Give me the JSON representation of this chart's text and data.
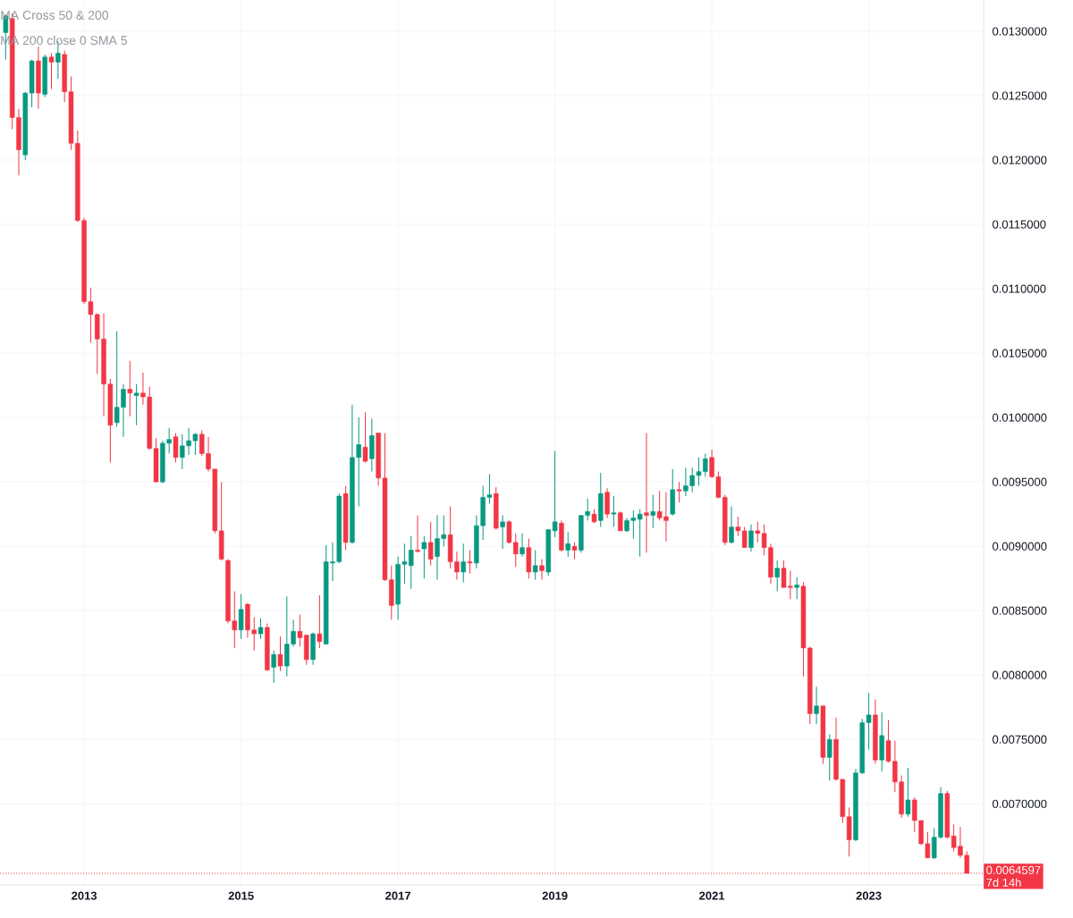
{
  "chart_data": {
    "type": "candlestick",
    "x": [
      "2012-01",
      "2012-02",
      "2012-03",
      "2012-04",
      "2012-05",
      "2012-06",
      "2012-07",
      "2012-08",
      "2012-09",
      "2012-10",
      "2012-11",
      "2012-12",
      "2013-01",
      "2013-02",
      "2013-03",
      "2013-04",
      "2013-05",
      "2013-06",
      "2013-07",
      "2013-08",
      "2013-09",
      "2013-10",
      "2013-11",
      "2013-12",
      "2014-01",
      "2014-02",
      "2014-03",
      "2014-04",
      "2014-05",
      "2014-06",
      "2014-07",
      "2014-08",
      "2014-09",
      "2014-10",
      "2014-11",
      "2014-12",
      "2015-01",
      "2015-02",
      "2015-03",
      "2015-04",
      "2015-05",
      "2015-06",
      "2015-07",
      "2015-08",
      "2015-09",
      "2015-10",
      "2015-11",
      "2015-12",
      "2016-01",
      "2016-02",
      "2016-03",
      "2016-04",
      "2016-05",
      "2016-06",
      "2016-07",
      "2016-08",
      "2016-09",
      "2016-10",
      "2016-11",
      "2016-12",
      "2017-01",
      "2017-02",
      "2017-03",
      "2017-04",
      "2017-05",
      "2017-06",
      "2017-07",
      "2017-08",
      "2017-09",
      "2017-10",
      "2017-11",
      "2017-12",
      "2018-01",
      "2018-02",
      "2018-03",
      "2018-04",
      "2018-05",
      "2018-06",
      "2018-07",
      "2018-08",
      "2018-09",
      "2018-10",
      "2018-11",
      "2018-12",
      "2019-01",
      "2019-02",
      "2019-03",
      "2019-04",
      "2019-05",
      "2019-06",
      "2019-07",
      "2019-08",
      "2019-09",
      "2019-10",
      "2019-11",
      "2019-12",
      "2020-01",
      "2020-02",
      "2020-03",
      "2020-04",
      "2020-05",
      "2020-06",
      "2020-07",
      "2020-08",
      "2020-09",
      "2020-10",
      "2020-11",
      "2020-12",
      "2021-01",
      "2021-02",
      "2021-03",
      "2021-04",
      "2021-05",
      "2021-06",
      "2021-07",
      "2021-08",
      "2021-09",
      "2021-10",
      "2021-11",
      "2021-12",
      "2022-01",
      "2022-02",
      "2022-03",
      "2022-04",
      "2022-05",
      "2022-06",
      "2022-07",
      "2022-08",
      "2022-09",
      "2022-10",
      "2022-11",
      "2022-12",
      "2023-01",
      "2023-02",
      "2023-03",
      "2023-04",
      "2023-05",
      "2023-06",
      "2023-07",
      "2023-08",
      "2023-09",
      "2023-10",
      "2023-11",
      "2023-12",
      "2024-01",
      "2024-02",
      "2024-03",
      "2024-04"
    ],
    "ohlc": [
      [
        0.01299,
        0.01313,
        0.01278,
        0.01312
      ],
      [
        0.0131,
        0.01314,
        0.01224,
        0.01233
      ],
      [
        0.01233,
        0.0124,
        0.01188,
        0.01208
      ],
      [
        0.01204,
        0.01253,
        0.012,
        0.01252
      ],
      [
        0.01252,
        0.01278,
        0.01241,
        0.01277
      ],
      [
        0.01277,
        0.01288,
        0.0124,
        0.01252
      ],
      [
        0.01251,
        0.01282,
        0.01249,
        0.0128
      ],
      [
        0.0128,
        0.01283,
        0.01255,
        0.01276
      ],
      [
        0.01276,
        0.01292,
        0.01263,
        0.01283
      ],
      [
        0.01282,
        0.01285,
        0.01245,
        0.01253
      ],
      [
        0.01253,
        0.01265,
        0.01208,
        0.01213
      ],
      [
        0.01213,
        0.01223,
        0.01152,
        0.01153
      ],
      [
        0.01153,
        0.01155,
        0.01088,
        0.0109
      ],
      [
        0.0109,
        0.01101,
        0.01058,
        0.0108
      ],
      [
        0.0108,
        0.01081,
        0.01034,
        0.01061
      ],
      [
        0.01061,
        0.01081,
        0.01001,
        0.01026
      ],
      [
        0.01026,
        0.0103,
        0.00965,
        0.00994
      ],
      [
        0.00996,
        0.01067,
        0.00993,
        0.01008
      ],
      [
        0.01008,
        0.01026,
        0.00985,
        0.01022
      ],
      [
        0.01022,
        0.01044,
        0.01001,
        0.01019
      ],
      [
        0.01017,
        0.01026,
        0.00994,
        0.01019
      ],
      [
        0.01019,
        0.01035,
        0.0101,
        0.01016
      ],
      [
        0.01016,
        0.01024,
        0.00975,
        0.00976
      ],
      [
        0.00976,
        0.00984,
        0.0095,
        0.0095
      ],
      [
        0.0095,
        0.00982,
        0.00949,
        0.0098
      ],
      [
        0.0098,
        0.00992,
        0.00972,
        0.00983
      ],
      [
        0.00985,
        0.00988,
        0.00965,
        0.00969
      ],
      [
        0.00969,
        0.00987,
        0.0096,
        0.00978
      ],
      [
        0.00978,
        0.00992,
        0.00971,
        0.00982
      ],
      [
        0.00982,
        0.00988,
        0.00971,
        0.00987
      ],
      [
        0.00987,
        0.0099,
        0.0097,
        0.00972
      ],
      [
        0.00972,
        0.00985,
        0.00958,
        0.0096
      ],
      [
        0.0096,
        0.0096,
        0.0091,
        0.00912
      ],
      [
        0.00912,
        0.0095,
        0.00889,
        0.0089
      ],
      [
        0.00889,
        0.0089,
        0.0084,
        0.00842
      ],
      [
        0.00842,
        0.00865,
        0.00821,
        0.00835
      ],
      [
        0.00835,
        0.00863,
        0.00828,
        0.00851
      ],
      [
        0.00855,
        0.00856,
        0.00829,
        0.00835
      ],
      [
        0.00835,
        0.00845,
        0.00819,
        0.00832
      ],
      [
        0.00832,
        0.00844,
        0.00828,
        0.00837
      ],
      [
        0.00837,
        0.0084,
        0.00803,
        0.00804
      ],
      [
        0.00806,
        0.00819,
        0.00794,
        0.00816
      ],
      [
        0.00816,
        0.0083,
        0.00803,
        0.00807
      ],
      [
        0.00807,
        0.00861,
        0.00799,
        0.00824
      ],
      [
        0.00824,
        0.00843,
        0.00822,
        0.00834
      ],
      [
        0.00834,
        0.00847,
        0.00822,
        0.00829
      ],
      [
        0.00831,
        0.00831,
        0.00808,
        0.00812
      ],
      [
        0.00812,
        0.00833,
        0.00808,
        0.00832
      ],
      [
        0.00832,
        0.00862,
        0.00821,
        0.00826
      ],
      [
        0.00824,
        0.00901,
        0.00824,
        0.00888
      ],
      [
        0.00887,
        0.00903,
        0.00873,
        0.00888
      ],
      [
        0.00888,
        0.00941,
        0.00887,
        0.00939
      ],
      [
        0.00941,
        0.00947,
        0.00897,
        0.00903
      ],
      [
        0.00903,
        0.0101,
        0.00902,
        0.00969
      ],
      [
        0.00969,
        0.01,
        0.00931,
        0.00979
      ],
      [
        0.00977,
        0.01004,
        0.00965,
        0.00966
      ],
      [
        0.00968,
        0.00999,
        0.00958,
        0.00986
      ],
      [
        0.00988,
        0.00988,
        0.00947,
        0.00953
      ],
      [
        0.00953,
        0.00988,
        0.00873,
        0.00874
      ],
      [
        0.00874,
        0.00885,
        0.00843,
        0.00854
      ],
      [
        0.00855,
        0.00892,
        0.00843,
        0.00886
      ],
      [
        0.00886,
        0.00902,
        0.00871,
        0.00888
      ],
      [
        0.00885,
        0.00908,
        0.00867,
        0.00897
      ],
      [
        0.00897,
        0.00924,
        0.00895,
        0.00896
      ],
      [
        0.00898,
        0.00908,
        0.00875,
        0.00903
      ],
      [
        0.00903,
        0.00919,
        0.00885,
        0.0089
      ],
      [
        0.00892,
        0.00924,
        0.00874,
        0.00906
      ],
      [
        0.00906,
        0.00924,
        0.009,
        0.00909
      ],
      [
        0.00909,
        0.00931,
        0.00883,
        0.00888
      ],
      [
        0.00888,
        0.00896,
        0.00874,
        0.0088
      ],
      [
        0.0088,
        0.00902,
        0.00872,
        0.00888
      ],
      [
        0.00888,
        0.00897,
        0.00879,
        0.00887
      ],
      [
        0.00887,
        0.00924,
        0.00883,
        0.00916
      ],
      [
        0.00916,
        0.00947,
        0.00905,
        0.00938
      ],
      [
        0.00938,
        0.00956,
        0.00933,
        0.0094
      ],
      [
        0.00941,
        0.00946,
        0.00913,
        0.00914
      ],
      [
        0.00915,
        0.00924,
        0.00898,
        0.00919
      ],
      [
        0.00919,
        0.0092,
        0.00902,
        0.00903
      ],
      [
        0.00903,
        0.0091,
        0.00884,
        0.00894
      ],
      [
        0.00894,
        0.0091,
        0.00892,
        0.00899
      ],
      [
        0.00899,
        0.00906,
        0.00875,
        0.0088
      ],
      [
        0.0088,
        0.00897,
        0.00874,
        0.00885
      ],
      [
        0.00885,
        0.0089,
        0.00874,
        0.00881
      ],
      [
        0.0088,
        0.00913,
        0.00877,
        0.00913
      ],
      [
        0.00912,
        0.00974,
        0.00907,
        0.00919
      ],
      [
        0.00918,
        0.0092,
        0.00896,
        0.00897
      ],
      [
        0.00897,
        0.00911,
        0.00892,
        0.00902
      ],
      [
        0.009,
        0.00903,
        0.0089,
        0.00897
      ],
      [
        0.00897,
        0.00924,
        0.00895,
        0.00924
      ],
      [
        0.00924,
        0.00937,
        0.0092,
        0.00927
      ],
      [
        0.00925,
        0.00929,
        0.00918,
        0.00919
      ],
      [
        0.0092,
        0.00957,
        0.00915,
        0.00941
      ],
      [
        0.00942,
        0.00945,
        0.00922,
        0.00925
      ],
      [
        0.00925,
        0.00939,
        0.00915,
        0.00926
      ],
      [
        0.00926,
        0.00927,
        0.00912,
        0.00912
      ],
      [
        0.00912,
        0.00922,
        0.00911,
        0.0092
      ],
      [
        0.0092,
        0.00928,
        0.00906,
        0.00922
      ],
      [
        0.00921,
        0.00929,
        0.00892,
        0.00925
      ],
      [
        0.00926,
        0.00988,
        0.00895,
        0.00924
      ],
      [
        0.00924,
        0.0094,
        0.00914,
        0.00927
      ],
      [
        0.00927,
        0.00943,
        0.0092,
        0.00922
      ],
      [
        0.00923,
        0.00942,
        0.00904,
        0.0092
      ],
      [
        0.00925,
        0.0096,
        0.00924,
        0.00944
      ],
      [
        0.00944,
        0.0095,
        0.00934,
        0.00943
      ],
      [
        0.00943,
        0.00961,
        0.00939,
        0.00947
      ],
      [
        0.00947,
        0.00961,
        0.00942,
        0.00955
      ],
      [
        0.00955,
        0.00969,
        0.00947,
        0.00958
      ],
      [
        0.00958,
        0.00972,
        0.00954,
        0.00968
      ],
      [
        0.00969,
        0.00975,
        0.00953,
        0.00954
      ],
      [
        0.00954,
        0.00958,
        0.00937,
        0.00938
      ],
      [
        0.00938,
        0.0094,
        0.00901,
        0.00903
      ],
      [
        0.00903,
        0.00931,
        0.00902,
        0.00915
      ],
      [
        0.00915,
        0.00923,
        0.00908,
        0.00912
      ],
      [
        0.00912,
        0.00915,
        0.00899,
        0.00899
      ],
      [
        0.00899,
        0.00917,
        0.00896,
        0.00912
      ],
      [
        0.00912,
        0.00919,
        0.00903,
        0.0091
      ],
      [
        0.0091,
        0.00917,
        0.00893,
        0.00899
      ],
      [
        0.00899,
        0.00902,
        0.00871,
        0.00876
      ],
      [
        0.00876,
        0.00889,
        0.00865,
        0.00883
      ],
      [
        0.00883,
        0.00889,
        0.00868,
        0.00868
      ],
      [
        0.00869,
        0.00881,
        0.00859,
        0.00868
      ],
      [
        0.00868,
        0.00876,
        0.00859,
        0.0087
      ],
      [
        0.00869,
        0.00872,
        0.00799,
        0.00821
      ],
      [
        0.00821,
        0.00822,
        0.00762,
        0.0077
      ],
      [
        0.0077,
        0.00791,
        0.00762,
        0.00776
      ],
      [
        0.00776,
        0.00776,
        0.00731,
        0.00736
      ],
      [
        0.00736,
        0.00754,
        0.00718,
        0.0075
      ],
      [
        0.0075,
        0.00767,
        0.00718,
        0.00719
      ],
      [
        0.00719,
        0.00719,
        0.00685,
        0.0069
      ],
      [
        0.0069,
        0.00697,
        0.00659,
        0.00672
      ],
      [
        0.00672,
        0.00727,
        0.00671,
        0.00724
      ],
      [
        0.00724,
        0.00766,
        0.00723,
        0.00763
      ],
      [
        0.00763,
        0.00786,
        0.00742,
        0.00769
      ],
      [
        0.00769,
        0.00781,
        0.00731,
        0.00734
      ],
      [
        0.00734,
        0.00771,
        0.00725,
        0.00753
      ],
      [
        0.00749,
        0.00765,
        0.00732,
        0.00733
      ],
      [
        0.00733,
        0.00749,
        0.00709,
        0.00717
      ],
      [
        0.00717,
        0.00722,
        0.00689,
        0.00692
      ],
      [
        0.00692,
        0.00728,
        0.0069,
        0.00703
      ],
      [
        0.00703,
        0.00705,
        0.00678,
        0.00687
      ],
      [
        0.00687,
        0.00687,
        0.00668,
        0.00669
      ],
      [
        0.00669,
        0.00678,
        0.00658,
        0.00658
      ],
      [
        0.00658,
        0.00681,
        0.00657,
        0.00674
      ],
      [
        0.00674,
        0.00713,
        0.00673,
        0.00708
      ],
      [
        0.00708,
        0.0071,
        0.00673,
        0.00674
      ],
      [
        0.00675,
        0.00684,
        0.00663,
        0.00666
      ],
      [
        0.00667,
        0.00682,
        0.00658,
        0.0066
      ],
      [
        0.0066,
        0.00663,
        0.0064597,
        0.0064597
      ]
    ],
    "colors": [
      "#089981",
      "#f23645",
      "#f23645",
      "#089981",
      "#089981",
      "#f23645",
      "#089981",
      "#f23645",
      "#089981",
      "#f23645",
      "#f23645",
      "#f23645",
      "#f23645",
      "#f23645",
      "#f23645",
      "#f23645",
      "#f23645",
      "#089981",
      "#089981",
      "#f23645",
      "#089981",
      "#f23645",
      "#f23645",
      "#f23645",
      "#089981",
      "#089981",
      "#f23645",
      "#089981",
      "#089981",
      "#089981",
      "#f23645",
      "#f23645",
      "#f23645",
      "#f23645",
      "#f23645",
      "#f23645",
      "#089981",
      "#f23645",
      "#f23645",
      "#089981",
      "#f23645",
      "#089981",
      "#f23645",
      "#089981",
      "#089981",
      "#f23645",
      "#f23645",
      "#089981",
      "#f23645",
      "#089981",
      "#089981",
      "#089981",
      "#f23645",
      "#089981",
      "#089981",
      "#f23645",
      "#089981",
      "#f23645",
      "#f23645",
      "#f23645",
      "#089981",
      "#089981",
      "#089981",
      "#f23645",
      "#089981",
      "#f23645",
      "#089981",
      "#089981",
      "#f23645",
      "#f23645",
      "#089981",
      "#f23645",
      "#089981",
      "#089981",
      "#089981",
      "#f23645",
      "#089981",
      "#f23645",
      "#f23645",
      "#089981",
      "#f23645",
      "#089981",
      "#f23645",
      "#089981",
      "#089981",
      "#f23645",
      "#089981",
      "#f23645",
      "#089981",
      "#089981",
      "#f23645",
      "#089981",
      "#f23645",
      "#089981",
      "#f23645",
      "#089981",
      "#089981",
      "#089981",
      "#f23645",
      "#089981",
      "#f23645",
      "#f23645",
      "#089981",
      "#f23645",
      "#089981",
      "#089981",
      "#089981",
      "#089981",
      "#f23645",
      "#f23645",
      "#f23645",
      "#089981",
      "#f23645",
      "#f23645",
      "#089981",
      "#f23645",
      "#f23645",
      "#f23645",
      "#089981",
      "#f23645",
      "#f23645",
      "#089981",
      "#f23645",
      "#f23645",
      "#089981",
      "#f23645",
      "#089981",
      "#f23645",
      "#f23645",
      "#f23645",
      "#089981",
      "#089981",
      "#089981",
      "#f23645",
      "#089981",
      "#f23645",
      "#f23645",
      "#f23645",
      "#089981",
      "#f23645",
      "#f23645",
      "#f23645",
      "#089981",
      "#089981",
      "#f23645",
      "#f23645",
      "#f23645",
      "#f23645"
    ],
    "xlim": [
      "2011-12-05",
      "2024-06-18"
    ],
    "xticks": [
      "2013",
      "2015",
      "2017",
      "2019",
      "2021",
      "2023"
    ],
    "ylim": [
      0.00637,
      0.013243
    ],
    "yticks": [
      {
        "value": 0.007,
        "label": "0.0070000"
      },
      {
        "value": 0.0075,
        "label": "0.0075000"
      },
      {
        "value": 0.008,
        "label": "0.0080000"
      },
      {
        "value": 0.0085,
        "label": "0.0085000"
      },
      {
        "value": 0.009,
        "label": "0.0090000"
      },
      {
        "value": 0.0095,
        "label": "0.0095000"
      },
      {
        "value": 0.01,
        "label": "0.0100000"
      },
      {
        "value": 0.0105,
        "label": "0.0105000"
      },
      {
        "value": 0.011,
        "label": "0.0110000"
      },
      {
        "value": 0.0115,
        "label": "0.0115000"
      },
      {
        "value": 0.012,
        "label": "0.0120000"
      },
      {
        "value": 0.0125,
        "label": "0.0125000"
      },
      {
        "value": 0.013,
        "label": "0.0130000"
      }
    ],
    "grid": true,
    "ref_lines": [
      {
        "axis": "y",
        "value": 0.0064597,
        "label": "0.0064597",
        "color": "#f23645",
        "line_style": "dotted"
      }
    ],
    "annotations": [
      "MA Cross 50 & 200",
      "MA 200 close 0 SMA 5",
      "7d 14h"
    ]
  }
}
